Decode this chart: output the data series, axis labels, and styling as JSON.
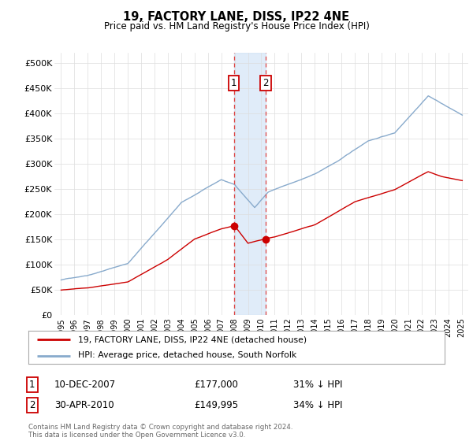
{
  "title": "19, FACTORY LANE, DISS, IP22 4NE",
  "subtitle": "Price paid vs. HM Land Registry's House Price Index (HPI)",
  "ylabel_ticks": [
    "£0",
    "£50K",
    "£100K",
    "£150K",
    "£200K",
    "£250K",
    "£300K",
    "£350K",
    "£400K",
    "£450K",
    "£500K"
  ],
  "ytick_values": [
    0,
    50000,
    100000,
    150000,
    200000,
    250000,
    300000,
    350000,
    400000,
    450000,
    500000
  ],
  "xlim": [
    1994.5,
    2025.5
  ],
  "ylim": [
    0,
    520000
  ],
  "sale1_date": "10-DEC-2007",
  "sale1_year": 2007.95,
  "sale1_price": 177000,
  "sale1_pct": "31% ↓ HPI",
  "sale2_date": "30-APR-2010",
  "sale2_year": 2010.33,
  "sale2_price": 149995,
  "sale2_pct": "34% ↓ HPI",
  "legend_line1": "19, FACTORY LANE, DISS, IP22 4NE (detached house)",
  "legend_line2": "HPI: Average price, detached house, South Norfolk",
  "footer": "Contains HM Land Registry data © Crown copyright and database right 2024.\nThis data is licensed under the Open Government Licence v3.0.",
  "property_color": "#cc0000",
  "hpi_color": "#88aacc",
  "background_color": "#ffffff",
  "grid_color": "#dddddd",
  "shade_color": "#cce0f5",
  "marker_color": "#dd4444"
}
